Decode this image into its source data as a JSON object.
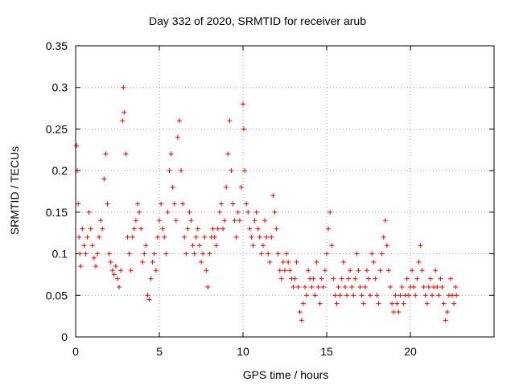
{
  "chart_data": {
    "type": "scatter",
    "title": "Day 332 of 2020, SRMTID for receiver arub",
    "xlabel": "GPS time / hours",
    "ylabel": "SRMTID / TECUs",
    "xlim": [
      0,
      25
    ],
    "ylim": [
      0,
      0.35
    ],
    "xticks": [
      0,
      5,
      10,
      15,
      20
    ],
    "yticks": [
      0,
      0.05,
      0.1,
      0.15,
      0.2,
      0.25,
      0.3,
      0.35
    ],
    "grid": true,
    "marker": "+",
    "color": "#ff0000",
    "series": [
      {
        "name": "SRMTID",
        "points": [
          [
            0.05,
            0.23
          ],
          [
            0.1,
            0.2
          ],
          [
            0.15,
            0.16
          ],
          [
            0.2,
            0.12
          ],
          [
            0.25,
            0.1
          ],
          [
            0.3,
            0.085
          ],
          [
            0.4,
            0.13
          ],
          [
            0.5,
            0.11
          ],
          [
            0.6,
            0.1
          ],
          [
            0.7,
            0.12
          ],
          [
            0.8,
            0.15
          ],
          [
            0.9,
            0.13
          ],
          [
            1.0,
            0.11
          ],
          [
            1.1,
            0.095
          ],
          [
            1.2,
            0.085
          ],
          [
            1.3,
            0.1
          ],
          [
            1.4,
            0.12
          ],
          [
            1.5,
            0.14
          ],
          [
            1.6,
            0.13
          ],
          [
            1.7,
            0.19
          ],
          [
            1.8,
            0.22
          ],
          [
            1.9,
            0.16
          ],
          [
            2.0,
            0.1
          ],
          [
            2.1,
            0.09
          ],
          [
            2.2,
            0.08
          ],
          [
            2.3,
            0.075
          ],
          [
            2.4,
            0.085
          ],
          [
            2.5,
            0.07
          ],
          [
            2.6,
            0.06
          ],
          [
            2.7,
            0.08
          ],
          [
            2.8,
            0.26
          ],
          [
            2.85,
            0.3
          ],
          [
            2.9,
            0.27
          ],
          [
            3.0,
            0.22
          ],
          [
            3.1,
            0.12
          ],
          [
            3.2,
            0.1
          ],
          [
            3.3,
            0.08
          ],
          [
            3.4,
            0.12
          ],
          [
            3.5,
            0.13
          ],
          [
            3.6,
            0.14
          ],
          [
            3.7,
            0.16
          ],
          [
            3.8,
            0.15
          ],
          [
            3.9,
            0.13
          ],
          [
            4.0,
            0.09
          ],
          [
            4.1,
            0.1
          ],
          [
            4.2,
            0.11
          ],
          [
            4.3,
            0.05
          ],
          [
            4.4,
            0.045
          ],
          [
            4.5,
            0.07
          ],
          [
            4.6,
            0.09
          ],
          [
            4.7,
            0.1
          ],
          [
            4.8,
            0.08
          ],
          [
            4.9,
            0.12
          ],
          [
            5.0,
            0.14
          ],
          [
            5.1,
            0.16
          ],
          [
            5.2,
            0.13
          ],
          [
            5.3,
            0.12
          ],
          [
            5.4,
            0.1
          ],
          [
            5.5,
            0.15
          ],
          [
            5.6,
            0.2
          ],
          [
            5.7,
            0.22
          ],
          [
            5.8,
            0.18
          ],
          [
            5.9,
            0.16
          ],
          [
            6.0,
            0.14
          ],
          [
            6.1,
            0.24
          ],
          [
            6.2,
            0.26
          ],
          [
            6.3,
            0.2
          ],
          [
            6.4,
            0.16
          ],
          [
            6.5,
            0.12
          ],
          [
            6.6,
            0.1
          ],
          [
            6.7,
            0.13
          ],
          [
            6.8,
            0.15
          ],
          [
            6.9,
            0.14
          ],
          [
            7.0,
            0.11
          ],
          [
            7.1,
            0.1
          ],
          [
            7.2,
            0.12
          ],
          [
            7.3,
            0.13
          ],
          [
            7.4,
            0.11
          ],
          [
            7.5,
            0.09
          ],
          [
            7.6,
            0.1
          ],
          [
            7.7,
            0.12
          ],
          [
            7.8,
            0.08
          ],
          [
            7.9,
            0.06
          ],
          [
            8.0,
            0.1
          ],
          [
            8.1,
            0.12
          ],
          [
            8.2,
            0.13
          ],
          [
            8.3,
            0.12
          ],
          [
            8.4,
            0.11
          ],
          [
            8.5,
            0.13
          ],
          [
            8.6,
            0.15
          ],
          [
            8.7,
            0.16
          ],
          [
            8.8,
            0.13
          ],
          [
            8.9,
            0.14
          ],
          [
            9.0,
            0.18
          ],
          [
            9.1,
            0.22
          ],
          [
            9.2,
            0.26
          ],
          [
            9.3,
            0.2
          ],
          [
            9.4,
            0.16
          ],
          [
            9.5,
            0.14
          ],
          [
            9.6,
            0.12
          ],
          [
            9.7,
            0.15
          ],
          [
            9.8,
            0.14
          ],
          [
            9.9,
            0.18
          ],
          [
            10.0,
            0.28
          ],
          [
            10.05,
            0.25
          ],
          [
            10.1,
            0.2
          ],
          [
            10.2,
            0.16
          ],
          [
            10.3,
            0.15
          ],
          [
            10.4,
            0.13
          ],
          [
            10.5,
            0.12
          ],
          [
            10.6,
            0.11
          ],
          [
            10.7,
            0.14
          ],
          [
            10.8,
            0.15
          ],
          [
            10.9,
            0.13
          ],
          [
            11.0,
            0.12
          ],
          [
            11.1,
            0.1
          ],
          [
            11.2,
            0.11
          ],
          [
            11.3,
            0.14
          ],
          [
            11.4,
            0.12
          ],
          [
            11.5,
            0.1
          ],
          [
            11.6,
            0.09
          ],
          [
            11.7,
            0.12
          ],
          [
            11.8,
            0.17
          ],
          [
            11.9,
            0.15
          ],
          [
            12.0,
            0.13
          ],
          [
            12.1,
            0.1
          ],
          [
            12.2,
            0.08
          ],
          [
            12.3,
            0.07
          ],
          [
            12.4,
            0.09
          ],
          [
            12.5,
            0.08
          ],
          [
            12.6,
            0.1
          ],
          [
            12.7,
            0.09
          ],
          [
            12.8,
            0.08
          ],
          [
            12.9,
            0.07
          ],
          [
            13.0,
            0.06
          ],
          [
            13.1,
            0.07
          ],
          [
            13.2,
            0.09
          ],
          [
            13.3,
            0.06
          ],
          [
            13.4,
            0.03
          ],
          [
            13.5,
            0.02
          ],
          [
            13.6,
            0.04
          ],
          [
            13.7,
            0.06
          ],
          [
            13.8,
            0.05
          ],
          [
            13.9,
            0.08
          ],
          [
            14.0,
            0.07
          ],
          [
            14.1,
            0.06
          ],
          [
            14.2,
            0.07
          ],
          [
            14.3,
            0.05
          ],
          [
            14.4,
            0.09
          ],
          [
            14.5,
            0.06
          ],
          [
            14.6,
            0.04
          ],
          [
            14.7,
            0.07
          ],
          [
            14.8,
            0.06
          ],
          [
            14.9,
            0.08
          ],
          [
            15.0,
            0.1
          ],
          [
            15.1,
            0.13
          ],
          [
            15.2,
            0.15
          ],
          [
            15.3,
            0.11
          ],
          [
            15.4,
            0.07
          ],
          [
            15.5,
            0.05
          ],
          [
            15.6,
            0.04
          ],
          [
            15.7,
            0.06
          ],
          [
            15.8,
            0.05
          ],
          [
            15.9,
            0.07
          ],
          [
            16.0,
            0.09
          ],
          [
            16.1,
            0.06
          ],
          [
            16.2,
            0.05
          ],
          [
            16.3,
            0.07
          ],
          [
            16.4,
            0.08
          ],
          [
            16.5,
            0.06
          ],
          [
            16.6,
            0.05
          ],
          [
            16.7,
            0.07
          ],
          [
            16.8,
            0.1
          ],
          [
            16.9,
            0.08
          ],
          [
            17.0,
            0.06
          ],
          [
            17.1,
            0.05
          ],
          [
            17.2,
            0.04
          ],
          [
            17.3,
            0.06
          ],
          [
            17.4,
            0.08
          ],
          [
            17.5,
            0.07
          ],
          [
            17.6,
            0.05
          ],
          [
            17.7,
            0.1
          ],
          [
            17.8,
            0.09
          ],
          [
            17.9,
            0.07
          ],
          [
            18.0,
            0.05
          ],
          [
            18.1,
            0.04
          ],
          [
            18.2,
            0.08
          ],
          [
            18.3,
            0.1
          ],
          [
            18.4,
            0.12
          ],
          [
            18.5,
            0.14
          ],
          [
            18.6,
            0.11
          ],
          [
            18.7,
            0.08
          ],
          [
            18.8,
            0.06
          ],
          [
            18.9,
            0.04
          ],
          [
            19.0,
            0.03
          ],
          [
            19.1,
            0.05
          ],
          [
            19.2,
            0.04
          ],
          [
            19.3,
            0.03
          ],
          [
            19.4,
            0.05
          ],
          [
            19.5,
            0.06
          ],
          [
            19.6,
            0.04
          ],
          [
            19.7,
            0.05
          ],
          [
            19.8,
            0.07
          ],
          [
            19.9,
            0.05
          ],
          [
            20.0,
            0.06
          ],
          [
            20.1,
            0.08
          ],
          [
            20.2,
            0.06
          ],
          [
            20.3,
            0.05
          ],
          [
            20.4,
            0.07
          ],
          [
            20.5,
            0.09
          ],
          [
            20.6,
            0.11
          ],
          [
            20.7,
            0.08
          ],
          [
            20.8,
            0.06
          ],
          [
            20.9,
            0.05
          ],
          [
            21.0,
            0.04
          ],
          [
            21.1,
            0.06
          ],
          [
            21.2,
            0.07
          ],
          [
            21.3,
            0.05
          ],
          [
            21.4,
            0.06
          ],
          [
            21.5,
            0.08
          ],
          [
            21.6,
            0.06
          ],
          [
            21.7,
            0.05
          ],
          [
            21.8,
            0.07
          ],
          [
            21.9,
            0.06
          ],
          [
            22.0,
            0.04
          ],
          [
            22.1,
            0.02
          ],
          [
            22.2,
            0.03
          ],
          [
            22.3,
            0.05
          ],
          [
            22.4,
            0.07
          ],
          [
            22.5,
            0.05
          ],
          [
            22.6,
            0.04
          ],
          [
            22.7,
            0.06
          ],
          [
            22.75,
            0.05
          ]
        ]
      }
    ]
  }
}
